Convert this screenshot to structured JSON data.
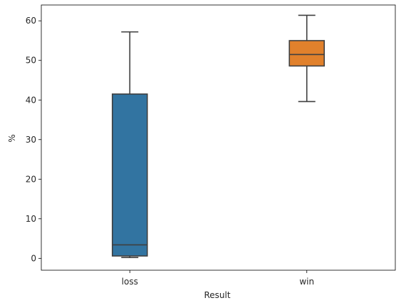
{
  "chart_data": {
    "type": "box",
    "xlabel": "Result",
    "ylabel": "%",
    "ylim": [
      -3,
      64
    ],
    "yticks": [
      0,
      10,
      20,
      30,
      40,
      50,
      60
    ],
    "categories": [
      "loss",
      "win"
    ],
    "boxes": [
      {
        "category": "loss",
        "whisker_low": 0.2,
        "q1": 0.6,
        "median": 3.4,
        "q3": 41.5,
        "whisker_high": 57.2,
        "color": "#3274a1"
      },
      {
        "category": "win",
        "whisker_low": 39.6,
        "q1": 48.6,
        "median": 51.5,
        "q3": 55.0,
        "whisker_high": 61.4,
        "color": "#e1812c"
      }
    ],
    "line_color": "#3f3f3f"
  }
}
